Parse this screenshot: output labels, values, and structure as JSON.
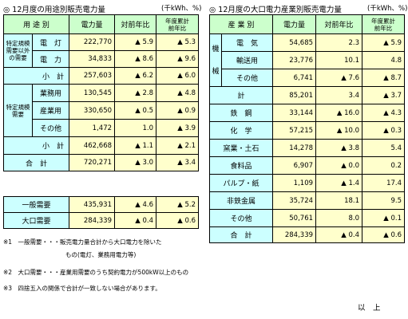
{
  "left": {
    "title": "◎ 12月度の用途別販売電力量",
    "unit": "(千kWh、%)",
    "headers": {
      "category": "用 途 別",
      "amount": "電力量",
      "yoy": "対前年比",
      "fy1": "年度累計",
      "fy2": "前年比"
    },
    "group1": {
      "label1": "特定規模",
      "label2": "需要以外",
      "label3": "の需要",
      "rows": [
        {
          "name": "電　灯",
          "amount": "222,770",
          "yoy": "▲ 5.9",
          "fy": "▲ 5.3"
        },
        {
          "name": "電　力",
          "amount": "34,833",
          "yoy": "▲ 8.6",
          "fy": "▲ 9.6"
        }
      ],
      "subtotal": {
        "name": "小　計",
        "amount": "257,603",
        "yoy": "▲ 6.2",
        "fy": "▲ 6.0"
      }
    },
    "group2": {
      "label1": "特定規模",
      "label2": "需要",
      "rows": [
        {
          "name": "業務用",
          "amount": "130,545",
          "yoy": "▲ 2.8",
          "fy": "▲ 4.8"
        },
        {
          "name": "産業用",
          "amount": "330,650",
          "yoy": "▲ 0.5",
          "fy": "▲ 0.9"
        },
        {
          "name": "その他",
          "amount": "1,472",
          "yoy": "1.0",
          "fy": "▲ 3.9"
        }
      ],
      "subtotal": {
        "name": "小　計",
        "amount": "462,668",
        "yoy": "▲ 1.1",
        "fy": "▲ 2.1"
      }
    },
    "total": {
      "name": "合　計",
      "amount": "720,271",
      "yoy": "▲ 3.0",
      "fy": "▲ 3.4"
    },
    "demand": [
      {
        "name": "一般需要",
        "amount": "435,931",
        "yoy": "▲ 4.6",
        "fy": "▲ 5.2"
      },
      {
        "name": "大口需要",
        "amount": "284,339",
        "yoy": "▲ 0.4",
        "fy": "▲ 0.6"
      }
    ]
  },
  "right": {
    "title": "◎ 12月度の大口電力産業別販売電力量",
    "unit": "(千kWh、%)",
    "headers": {
      "category": "産 業 別",
      "amount": "電力量",
      "yoy": "対前年比",
      "fy1": "年度累計",
      "fy2": "前年比"
    },
    "machine": {
      "label1": "機",
      "label2": "械",
      "rows": [
        {
          "name": "電　気",
          "amount": "54,685",
          "yoy": "2.3",
          "fy": "▲ 5.9"
        },
        {
          "name": "輸送用",
          "amount": "23,776",
          "yoy": "10.1",
          "fy": "4.8"
        },
        {
          "name": "その他",
          "amount": "6,741",
          "yoy": "▲ 7.6",
          "fy": "▲ 8.7"
        }
      ],
      "subtotal": {
        "name": "計",
        "amount": "85,201",
        "yoy": "3.4",
        "fy": "▲ 3.7"
      }
    },
    "rows": [
      {
        "name": "鉄　鋼",
        "amount": "33,144",
        "yoy": "▲ 16.0",
        "fy": "▲ 4.3"
      },
      {
        "name": "化　学",
        "amount": "57,215",
        "yoy": "▲ 10.0",
        "fy": "▲ 0.3"
      },
      {
        "name": "窯業・土石",
        "amount": "14,278",
        "yoy": "▲ 3.8",
        "fy": "5.4"
      },
      {
        "name": "食料品",
        "amount": "6,907",
        "yoy": "▲ 0.0",
        "fy": "0.2"
      },
      {
        "name": "パルプ・紙",
        "amount": "1,109",
        "yoy": "▲ 1.4",
        "fy": "17.4"
      },
      {
        "name": "非鉄金属",
        "amount": "35,724",
        "yoy": "18.1",
        "fy": "9.5"
      },
      {
        "name": "その他",
        "amount": "50,761",
        "yoy": "8.0",
        "fy": "▲ 0.1"
      }
    ],
    "total": {
      "name": "合　計",
      "amount": "284,339",
      "yoy": "▲ 0.4",
      "fy": "▲ 0.6"
    }
  },
  "notes": {
    "n1a": "※1　一般需要・・・販売電力量合計から大口電力を除いた",
    "n1b": "もの(電灯、業務用電力等)",
    "n2": "※2　大口需要・・・産業用需要のうち契約電力が500kW以上のもの",
    "n3": "※3　四捨五入の関係で合計が一致しない場合があります。",
    "end": "以　上"
  }
}
